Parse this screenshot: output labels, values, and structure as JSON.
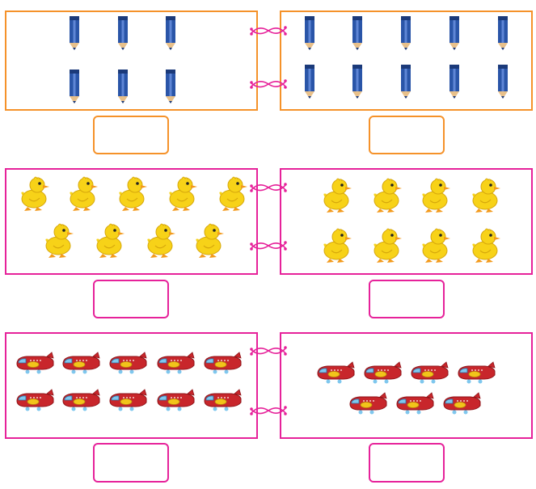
{
  "rows": [
    {
      "name": "pencils",
      "border_color": "#f5922a",
      "left_count": 6,
      "right_count": 10,
      "item_icon": "blue-pencil-icon"
    },
    {
      "name": "ducklings",
      "border_color": "#e6229a",
      "left_count": 9,
      "right_count": 8,
      "item_icon": "yellow-duckling-icon"
    },
    {
      "name": "airplanes",
      "border_color": "#e6229a",
      "left_count": 10,
      "right_count": 7,
      "item_icon": "red-airplane-icon"
    }
  ],
  "colors": {
    "pencil_body": "#2a55a8",
    "pencil_dark": "#1b3a7a",
    "duck_body": "#f7d218",
    "duck_beak": "#f39a1c",
    "plane_body": "#c8262b",
    "plane_wing": "#f2c41a",
    "plane_window": "#7fc7ee"
  }
}
